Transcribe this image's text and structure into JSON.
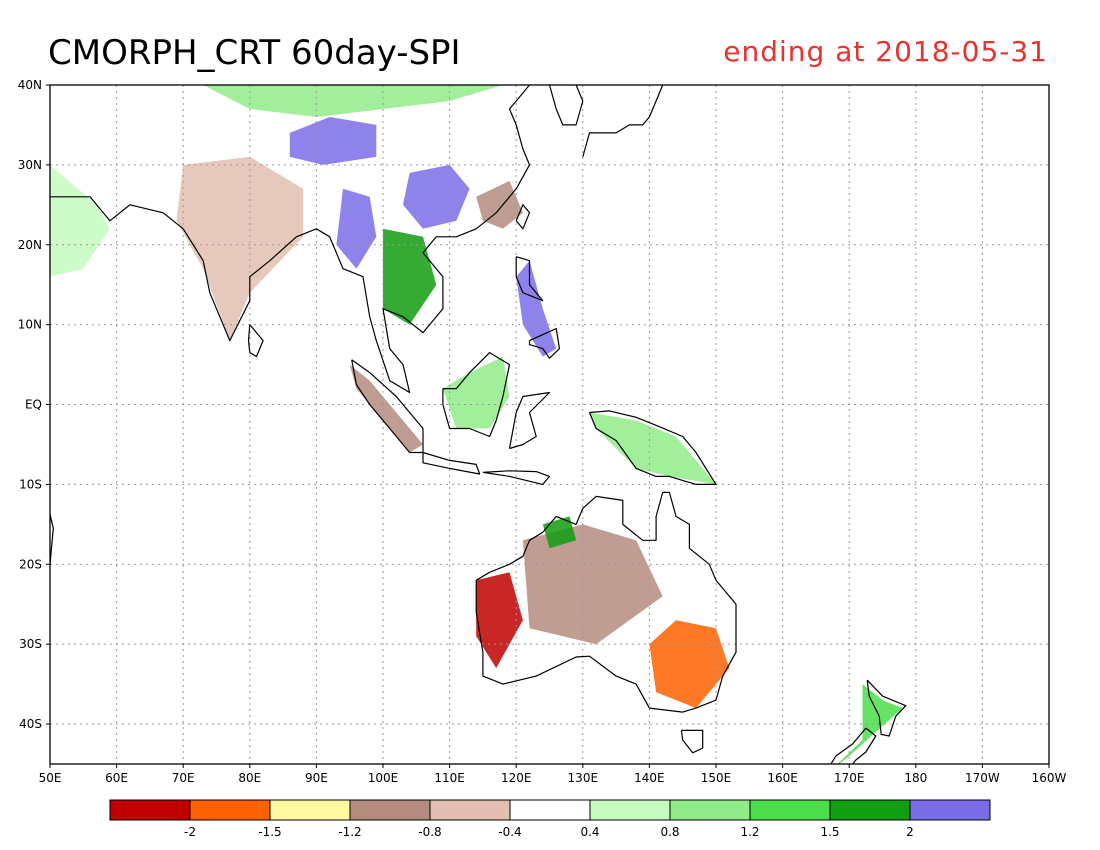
{
  "title": "CMORPH_CRT 60day-SPI",
  "subtitle": "ending at 2018-05-31",
  "map": {
    "lon_range": [
      50,
      200
    ],
    "lat_range": [
      -45,
      40
    ],
    "lon_ticks": [
      {
        "value": 50,
        "label": "50E"
      },
      {
        "value": 60,
        "label": "60E"
      },
      {
        "value": 70,
        "label": "70E"
      },
      {
        "value": 80,
        "label": "80E"
      },
      {
        "value": 90,
        "label": "90E"
      },
      {
        "value": 100,
        "label": "100E"
      },
      {
        "value": 110,
        "label": "110E"
      },
      {
        "value": 120,
        "label": "120E"
      },
      {
        "value": 130,
        "label": "130E"
      },
      {
        "value": 140,
        "label": "140E"
      },
      {
        "value": 150,
        "label": "150E"
      },
      {
        "value": 160,
        "label": "160E"
      },
      {
        "value": 170,
        "label": "170E"
      },
      {
        "value": 180,
        "label": "180"
      },
      {
        "value": 190,
        "label": "170W"
      },
      {
        "value": 200,
        "label": "160W"
      }
    ],
    "lat_ticks": [
      {
        "value": 40,
        "label": "40N"
      },
      {
        "value": 30,
        "label": "30N"
      },
      {
        "value": 20,
        "label": "20N"
      },
      {
        "value": 10,
        "label": "10N"
      },
      {
        "value": 0,
        "label": "EQ"
      },
      {
        "value": -10,
        "label": "10S"
      },
      {
        "value": -20,
        "label": "20S"
      },
      {
        "value": -30,
        "label": "30S"
      },
      {
        "value": -40,
        "label": "40S"
      }
    ],
    "grid": true
  },
  "colorbar": {
    "colors": [
      "#c00000",
      "#ff6000",
      "#fffaa0",
      "#b48c7f",
      "#e2bfb0",
      "#ffffff",
      "#c6fcc0",
      "#90ec88",
      "#4ade4a",
      "#119e11",
      "#7a6ce8"
    ],
    "labels": [
      "-2",
      "-1.5",
      "-1.2",
      "-0.8",
      "-0.4",
      "0.4",
      "0.8",
      "1.2",
      "1.5",
      "2"
    ]
  },
  "regions": [
    {
      "name": "china-north",
      "class": 7,
      "pts": [
        [
          73,
          40
        ],
        [
          80,
          37
        ],
        [
          90,
          36
        ],
        [
          100,
          37
        ],
        [
          110,
          38
        ],
        [
          118,
          40
        ]
      ]
    },
    {
      "name": "tibet-plateau",
      "class": 10,
      "pts": [
        [
          86,
          34
        ],
        [
          92,
          36
        ],
        [
          99,
          35
        ],
        [
          99,
          31
        ],
        [
          91,
          30
        ],
        [
          86,
          31
        ]
      ]
    },
    {
      "name": "south-china",
      "class": 10,
      "pts": [
        [
          104,
          29
        ],
        [
          110,
          30
        ],
        [
          113,
          27
        ],
        [
          111,
          23
        ],
        [
          106,
          22
        ],
        [
          103,
          25
        ]
      ]
    },
    {
      "name": "se-china-dry",
      "class": 3,
      "pts": [
        [
          114,
          26
        ],
        [
          119,
          28
        ],
        [
          121,
          24
        ],
        [
          118,
          22
        ],
        [
          115,
          23
        ]
      ]
    },
    {
      "name": "myanmar-wet",
      "class": 10,
      "pts": [
        [
          94,
          27
        ],
        [
          98,
          26
        ],
        [
          99,
          21
        ],
        [
          96,
          17
        ],
        [
          93,
          20
        ]
      ]
    },
    {
      "name": "indochina",
      "class": 9,
      "pts": [
        [
          100,
          22
        ],
        [
          106,
          21
        ],
        [
          108,
          15
        ],
        [
          104,
          10
        ],
        [
          100,
          12
        ]
      ]
    },
    {
      "name": "india",
      "class": 4,
      "pts": [
        [
          70,
          30
        ],
        [
          80,
          31
        ],
        [
          88,
          27
        ],
        [
          88,
          21
        ],
        [
          80,
          14
        ],
        [
          77,
          8
        ],
        [
          73,
          17
        ],
        [
          69,
          23
        ]
      ]
    },
    {
      "name": "arabia",
      "class": 6,
      "pts": [
        [
          50,
          30
        ],
        [
          57,
          25
        ],
        [
          59,
          22
        ],
        [
          55,
          17
        ],
        [
          50,
          16
        ]
      ]
    },
    {
      "name": "australia-west-dry",
      "class": 0,
      "pts": [
        [
          114,
          -22
        ],
        [
          119,
          -21
        ],
        [
          121,
          -27
        ],
        [
          117,
          -33
        ],
        [
          114,
          -29
        ]
      ]
    },
    {
      "name": "australia-central",
      "class": 3,
      "pts": [
        [
          121,
          -17
        ],
        [
          130,
          -15
        ],
        [
          138,
          -17
        ],
        [
          142,
          -24
        ],
        [
          132,
          -30
        ],
        [
          122,
          -28
        ]
      ]
    },
    {
      "name": "australia-east-dry",
      "class": 1,
      "pts": [
        [
          144,
          -27
        ],
        [
          150,
          -28
        ],
        [
          152,
          -33
        ],
        [
          147,
          -38
        ],
        [
          141,
          -36
        ],
        [
          140,
          -30
        ]
      ]
    },
    {
      "name": "australia-nw-wet",
      "class": 9,
      "pts": [
        [
          124,
          -15
        ],
        [
          128,
          -14
        ],
        [
          129,
          -17
        ],
        [
          125,
          -18
        ]
      ]
    },
    {
      "name": "borneo",
      "class": 7,
      "pts": [
        [
          109,
          2
        ],
        [
          113,
          4
        ],
        [
          118,
          6
        ],
        [
          119,
          1
        ],
        [
          116,
          -3
        ],
        [
          111,
          -3
        ]
      ]
    },
    {
      "name": "sumatra",
      "class": 3,
      "pts": [
        [
          95,
          5
        ],
        [
          98,
          3
        ],
        [
          103,
          -2
        ],
        [
          106,
          -5
        ],
        [
          104,
          -6
        ],
        [
          100,
          -2
        ],
        [
          96,
          2
        ]
      ]
    },
    {
      "name": "new-guinea",
      "class": 7,
      "pts": [
        [
          131,
          -1
        ],
        [
          138,
          -2
        ],
        [
          144,
          -4
        ],
        [
          150,
          -10
        ],
        [
          143,
          -9
        ],
        [
          138,
          -8
        ],
        [
          132,
          -3
        ]
      ]
    },
    {
      "name": "philippines-wet",
      "class": 10,
      "pts": [
        [
          120,
          16
        ],
        [
          122,
          18
        ],
        [
          124,
          12
        ],
        [
          126,
          7
        ],
        [
          124,
          6
        ],
        [
          121,
          10
        ]
      ]
    },
    {
      "name": "new-zealand",
      "class": 8,
      "pts": [
        [
          172,
          -35
        ],
        [
          175,
          -37
        ],
        [
          178,
          -38
        ],
        [
          174,
          -41
        ],
        [
          170,
          -44
        ],
        [
          167,
          -46
        ],
        [
          172,
          -42
        ]
      ]
    }
  ],
  "coastlines": [
    {
      "name": "asia-mainland",
      "pts": [
        [
          50,
          26
        ],
        [
          56,
          26
        ],
        [
          59,
          23
        ],
        [
          62,
          25
        ],
        [
          67,
          24
        ],
        [
          70,
          22
        ],
        [
          73,
          18
        ],
        [
          74,
          14
        ],
        [
          77,
          8
        ],
        [
          80,
          13
        ],
        [
          80,
          16
        ],
        [
          83,
          18
        ],
        [
          87,
          21
        ],
        [
          90,
          22
        ],
        [
          92,
          21
        ],
        [
          94,
          17
        ],
        [
          97,
          16
        ],
        [
          98,
          11
        ],
        [
          99,
          8
        ],
        [
          101,
          3
        ],
        [
          104,
          1.5
        ],
        [
          103,
          5
        ],
        [
          101,
          7
        ],
        [
          100,
          12
        ],
        [
          103,
          11
        ],
        [
          106,
          9
        ],
        [
          109,
          12
        ],
        [
          109,
          16
        ],
        [
          106,
          19
        ],
        [
          108,
          21
        ],
        [
          111,
          21
        ],
        [
          114,
          22
        ],
        [
          117,
          24
        ],
        [
          120,
          27
        ],
        [
          122,
          30
        ],
        [
          121,
          32
        ],
        [
          120,
          35
        ],
        [
          119,
          37
        ],
        [
          121,
          39
        ],
        [
          122,
          40
        ]
      ]
    },
    {
      "name": "korea",
      "pts": [
        [
          125,
          40
        ],
        [
          126,
          37
        ],
        [
          127,
          35
        ],
        [
          129,
          35
        ],
        [
          130,
          38
        ],
        [
          129,
          40
        ]
      ]
    },
    {
      "name": "japan",
      "pts": [
        [
          130,
          31
        ],
        [
          131,
          34
        ],
        [
          133,
          34
        ],
        [
          135,
          34
        ],
        [
          137,
          35
        ],
        [
          139,
          35
        ],
        [
          140,
          36
        ],
        [
          141,
          38
        ],
        [
          142,
          40
        ]
      ]
    },
    {
      "name": "taiwan",
      "pts": [
        [
          120,
          23
        ],
        [
          121,
          25
        ],
        [
          122,
          24
        ],
        [
          121,
          22
        ],
        [
          120,
          23
        ]
      ]
    },
    {
      "name": "sri-lanka",
      "pts": [
        [
          80,
          10
        ],
        [
          82,
          8
        ],
        [
          81,
          6
        ],
        [
          80,
          6.5
        ],
        [
          79.8,
          8
        ],
        [
          80,
          10
        ]
      ]
    },
    {
      "name": "sumatra",
      "pts": [
        [
          95.3,
          5.6
        ],
        [
          98,
          4
        ],
        [
          102,
          1
        ],
        [
          106,
          -3
        ],
        [
          106,
          -6
        ],
        [
          104,
          -6
        ],
        [
          101,
          -3
        ],
        [
          98,
          0
        ],
        [
          96,
          2.5
        ],
        [
          95.3,
          5.6
        ]
      ]
    },
    {
      "name": "java",
      "pts": [
        [
          106,
          -6
        ],
        [
          110,
          -7
        ],
        [
          114,
          -7.5
        ],
        [
          114.5,
          -8.7
        ],
        [
          110,
          -8
        ],
        [
          106,
          -7.3
        ],
        [
          106,
          -6
        ]
      ]
    },
    {
      "name": "lesser-sunda",
      "pts": [
        [
          115,
          -8.5
        ],
        [
          119,
          -8.3
        ],
        [
          123,
          -8.4
        ],
        [
          125,
          -9
        ],
        [
          124,
          -10
        ],
        [
          119,
          -9
        ],
        [
          115,
          -8.5
        ]
      ]
    },
    {
      "name": "borneo",
      "pts": [
        [
          109,
          2
        ],
        [
          111,
          2
        ],
        [
          113,
          4
        ],
        [
          116,
          6.5
        ],
        [
          119,
          5
        ],
        [
          118,
          1
        ],
        [
          117,
          -2
        ],
        [
          116,
          -4
        ],
        [
          113,
          -3
        ],
        [
          110,
          -3
        ],
        [
          109,
          0
        ],
        [
          109,
          2
        ]
      ]
    },
    {
      "name": "sulawesi",
      "pts": [
        [
          119,
          -5.5
        ],
        [
          120,
          -1
        ],
        [
          121,
          1
        ],
        [
          125,
          1.5
        ],
        [
          122,
          -1
        ],
        [
          123,
          -4
        ],
        [
          121,
          -5
        ],
        [
          119,
          -5.5
        ]
      ]
    },
    {
      "name": "philippines-luzon",
      "pts": [
        [
          120,
          18.5
        ],
        [
          122,
          18
        ],
        [
          122,
          15
        ],
        [
          124,
          13
        ],
        [
          121,
          14
        ],
        [
          120,
          16
        ],
        [
          120,
          18.5
        ]
      ]
    },
    {
      "name": "philippines-mindanao",
      "pts": [
        [
          122,
          8
        ],
        [
          126,
          9.5
        ],
        [
          126.5,
          7
        ],
        [
          125,
          5.8
        ],
        [
          124,
          7
        ],
        [
          122,
          7.5
        ],
        [
          122,
          8
        ]
      ]
    },
    {
      "name": "new-guinea",
      "pts": [
        [
          131,
          -1
        ],
        [
          134,
          -0.8
        ],
        [
          138,
          -1.6
        ],
        [
          141,
          -2.6
        ],
        [
          145,
          -4
        ],
        [
          147,
          -6
        ],
        [
          150,
          -10
        ],
        [
          147,
          -10
        ],
        [
          143,
          -9
        ],
        [
          141,
          -9
        ],
        [
          138,
          -8
        ],
        [
          135,
          -4.5
        ],
        [
          132,
          -3
        ],
        [
          131,
          -1
        ]
      ]
    },
    {
      "name": "australia",
      "pts": [
        [
          114,
          -22
        ],
        [
          114,
          -26
        ],
        [
          115,
          -31
        ],
        [
          115,
          -34
        ],
        [
          118,
          -35
        ],
        [
          123,
          -34
        ],
        [
          129,
          -31.6
        ],
        [
          131,
          -31.5
        ],
        [
          135,
          -34
        ],
        [
          138,
          -35
        ],
        [
          140,
          -38
        ],
        [
          145,
          -38.5
        ],
        [
          147,
          -38
        ],
        [
          150,
          -37
        ],
        [
          151,
          -34
        ],
        [
          153,
          -31
        ],
        [
          153,
          -28
        ],
        [
          153,
          -25
        ],
        [
          150,
          -22
        ],
        [
          149,
          -20
        ],
        [
          146,
          -18
        ],
        [
          146,
          -15
        ],
        [
          144,
          -14
        ],
        [
          143,
          -11
        ],
        [
          142,
          -11
        ],
        [
          141,
          -14
        ],
        [
          141,
          -17
        ],
        [
          139,
          -17
        ],
        [
          136,
          -15
        ],
        [
          136,
          -12
        ],
        [
          132,
          -11.5
        ],
        [
          130,
          -13
        ],
        [
          129,
          -15
        ],
        [
          126,
          -14
        ],
        [
          124,
          -16
        ],
        [
          122,
          -17
        ],
        [
          121,
          -19
        ],
        [
          119,
          -20
        ],
        [
          116,
          -21
        ],
        [
          114,
          -22
        ]
      ]
    },
    {
      "name": "tasmania",
      "pts": [
        [
          144.8,
          -40.8
        ],
        [
          148,
          -40.8
        ],
        [
          148,
          -43
        ],
        [
          146.5,
          -43.6
        ],
        [
          145,
          -42
        ],
        [
          144.8,
          -40.8
        ]
      ]
    },
    {
      "name": "new-zealand-north",
      "pts": [
        [
          172.7,
          -34.5
        ],
        [
          175,
          -36.5
        ],
        [
          178.5,
          -37.7
        ],
        [
          177,
          -39
        ],
        [
          176,
          -41.5
        ],
        [
          174.8,
          -41.3
        ],
        [
          174.5,
          -39
        ],
        [
          173,
          -36.5
        ],
        [
          172.7,
          -34.5
        ]
      ]
    },
    {
      "name": "new-zealand-south",
      "pts": [
        [
          172.5,
          -40.5
        ],
        [
          174,
          -41.5
        ],
        [
          172.5,
          -43.5
        ],
        [
          171,
          -44.5
        ],
        [
          169,
          -46.5
        ],
        [
          166.5,
          -46
        ],
        [
          168,
          -44
        ],
        [
          170.5,
          -42.5
        ],
        [
          172.5,
          -40.5
        ]
      ]
    },
    {
      "name": "madagascar",
      "pts": [
        [
          49.5,
          -12
        ],
        [
          50.5,
          -15.5
        ],
        [
          50,
          -20
        ],
        [
          49.5,
          -25
        ],
        [
          50,
          -25.5
        ]
      ]
    }
  ]
}
